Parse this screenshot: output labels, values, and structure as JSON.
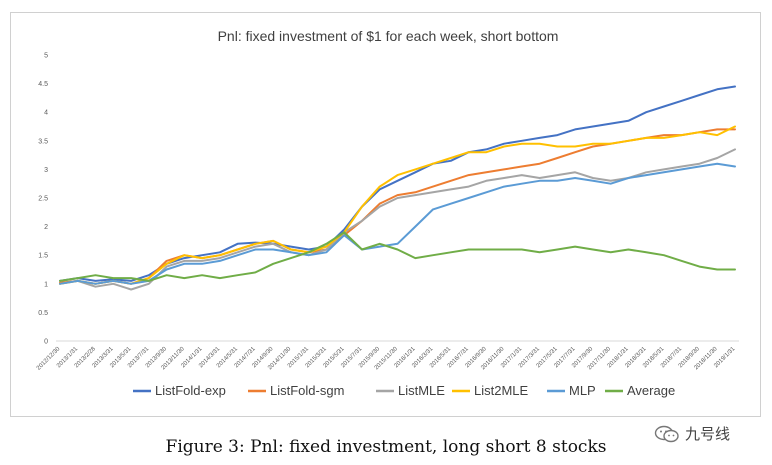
{
  "figure": {
    "caption": "Figure 3: Pnl: fixed investment, long short 8 stocks",
    "watermark_text": "九号线",
    "watermark_icon": "wechat-icon"
  },
  "chart_data": {
    "type": "line",
    "title": "Pnl: fixed investment of $1 for each week, short bottom",
    "xlabel": "",
    "ylabel": "",
    "ylim": [
      0,
      5
    ],
    "yticks": [
      "0",
      "0.5",
      "1",
      "1.5",
      "2",
      "2.5",
      "3",
      "3.5",
      "4",
      "4.5",
      "5"
    ],
    "grid": false,
    "legend_position": "bottom",
    "x": [
      "2012/12/30",
      "2013/1/31",
      "2013/2/28",
      "2013/3/31",
      "2013/5/31",
      "2013/7/31",
      "2013/9/30",
      "2013/11/30",
      "2014/1/31",
      "2014/3/31",
      "2014/5/31",
      "2014/7/31",
      "2014/9/30",
      "2014/11/30",
      "2015/1/31",
      "2015/3/31",
      "2015/5/31",
      "2015/7/31",
      "2015/9/30",
      "2015/11/30",
      "2016/1/31",
      "2016/3/31",
      "2016/5/31",
      "2016/7/31",
      "2016/9/30",
      "2016/11/30",
      "2017/1/31",
      "2017/3/31",
      "2017/5/31",
      "2017/7/31",
      "2017/9/30",
      "2017/11/30",
      "2018/1/31",
      "2018/3/31",
      "2018/5/31",
      "2018/7/31",
      "2018/9/30",
      "2018/11/30",
      "2019/1/31"
    ],
    "series": [
      {
        "name": "ListFold-exp",
        "color": "#4472C4",
        "values": [
          1.05,
          1.1,
          1.05,
          1.08,
          1.05,
          1.15,
          1.35,
          1.45,
          1.5,
          1.55,
          1.7,
          1.72,
          1.7,
          1.65,
          1.6,
          1.65,
          1.95,
          2.35,
          2.65,
          2.8,
          2.95,
          3.1,
          3.15,
          3.3,
          3.35,
          3.45,
          3.5,
          3.55,
          3.6,
          3.7,
          3.75,
          3.8,
          3.85,
          4.0,
          4.1,
          4.2,
          4.3,
          4.4,
          4.45
        ]
      },
      {
        "name": "ListFold-sgm",
        "color": "#ED7D31",
        "values": [
          1.02,
          1.05,
          1.0,
          1.05,
          1.0,
          1.1,
          1.4,
          1.5,
          1.45,
          1.5,
          1.6,
          1.7,
          1.75,
          1.6,
          1.55,
          1.6,
          1.85,
          2.1,
          2.4,
          2.55,
          2.6,
          2.7,
          2.8,
          2.9,
          2.95,
          3.0,
          3.05,
          3.1,
          3.2,
          3.3,
          3.4,
          3.45,
          3.5,
          3.55,
          3.6,
          3.6,
          3.65,
          3.7,
          3.7
        ]
      },
      {
        "name": "ListMLE",
        "color": "#A5A5A5",
        "values": [
          1.0,
          1.05,
          0.95,
          1.0,
          0.9,
          1.0,
          1.3,
          1.4,
          1.4,
          1.45,
          1.55,
          1.65,
          1.7,
          1.55,
          1.5,
          1.6,
          1.9,
          2.1,
          2.35,
          2.5,
          2.55,
          2.6,
          2.65,
          2.7,
          2.8,
          2.85,
          2.9,
          2.85,
          2.9,
          2.95,
          2.85,
          2.8,
          2.85,
          2.95,
          3.0,
          3.05,
          3.1,
          3.2,
          3.35
        ]
      },
      {
        "name": "List2MLE",
        "color": "#FFC000",
        "values": [
          1.0,
          1.05,
          1.0,
          1.05,
          1.0,
          1.1,
          1.35,
          1.5,
          1.45,
          1.5,
          1.6,
          1.7,
          1.75,
          1.6,
          1.55,
          1.65,
          1.9,
          2.35,
          2.7,
          2.9,
          3.0,
          3.1,
          3.2,
          3.3,
          3.3,
          3.4,
          3.45,
          3.45,
          3.4,
          3.4,
          3.45,
          3.45,
          3.5,
          3.55,
          3.55,
          3.6,
          3.65,
          3.6,
          3.75
        ]
      },
      {
        "name": "MLP",
        "color": "#5B9BD5",
        "values": [
          1.0,
          1.05,
          1.0,
          1.05,
          1.0,
          1.05,
          1.25,
          1.35,
          1.35,
          1.4,
          1.5,
          1.6,
          1.6,
          1.55,
          1.5,
          1.55,
          1.85,
          1.6,
          1.65,
          1.7,
          2.0,
          2.3,
          2.4,
          2.5,
          2.6,
          2.7,
          2.75,
          2.8,
          2.8,
          2.85,
          2.8,
          2.75,
          2.85,
          2.9,
          2.95,
          3.0,
          3.05,
          3.1,
          3.05
        ]
      },
      {
        "name": "Average",
        "color": "#70AD47",
        "values": [
          1.05,
          1.1,
          1.15,
          1.1,
          1.1,
          1.05,
          1.15,
          1.1,
          1.15,
          1.1,
          1.15,
          1.2,
          1.35,
          1.45,
          1.55,
          1.7,
          1.9,
          1.6,
          1.7,
          1.6,
          1.45,
          1.5,
          1.55,
          1.6,
          1.6,
          1.6,
          1.6,
          1.55,
          1.6,
          1.65,
          1.6,
          1.55,
          1.6,
          1.55,
          1.5,
          1.4,
          1.3,
          1.25,
          1.25
        ]
      }
    ]
  }
}
